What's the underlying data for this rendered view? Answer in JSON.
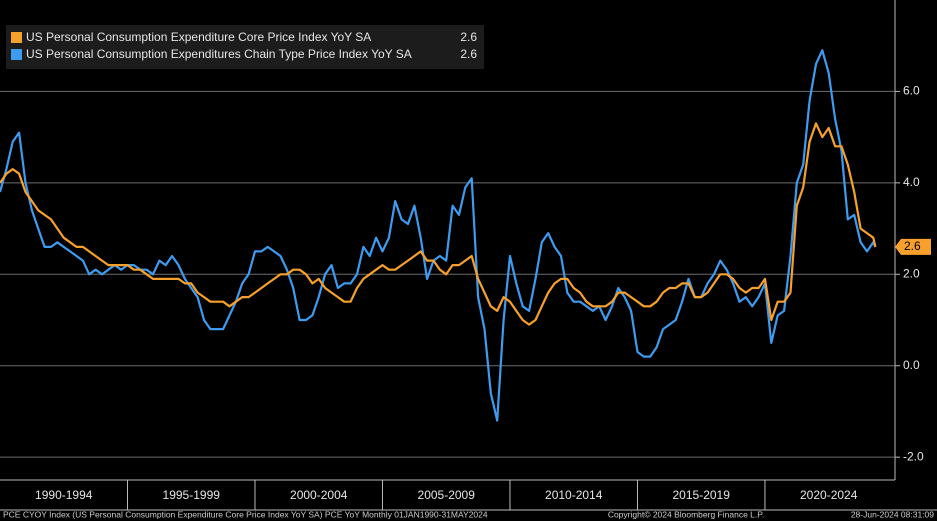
{
  "chart_data": {
    "type": "line",
    "x": [
      1990,
      1990.25,
      1990.5,
      1990.75,
      1991,
      1991.25,
      1991.5,
      1991.75,
      1992,
      1992.25,
      1992.5,
      1992.75,
      1993,
      1993.25,
      1993.5,
      1993.75,
      1994,
      1994.25,
      1994.5,
      1994.75,
      1995,
      1995.25,
      1995.5,
      1995.75,
      1996,
      1996.25,
      1996.5,
      1996.75,
      1997,
      1997.25,
      1997.5,
      1997.75,
      1998,
      1998.25,
      1998.5,
      1998.75,
      1999,
      1999.25,
      1999.5,
      1999.75,
      2000,
      2000.25,
      2000.5,
      2000.75,
      2001,
      2001.25,
      2001.5,
      2001.75,
      2002,
      2002.25,
      2002.5,
      2002.75,
      2003,
      2003.25,
      2003.5,
      2003.75,
      2004,
      2004.25,
      2004.5,
      2004.75,
      2005,
      2005.25,
      2005.5,
      2005.75,
      2006,
      2006.25,
      2006.5,
      2006.75,
      2007,
      2007.25,
      2007.5,
      2007.75,
      2008,
      2008.25,
      2008.5,
      2008.75,
      2009,
      2009.25,
      2009.5,
      2009.75,
      2010,
      2010.25,
      2010.5,
      2010.75,
      2011,
      2011.25,
      2011.5,
      2011.75,
      2012,
      2012.25,
      2012.5,
      2012.75,
      2013,
      2013.25,
      2013.5,
      2013.75,
      2014,
      2014.25,
      2014.5,
      2014.75,
      2015,
      2015.25,
      2015.5,
      2015.75,
      2016,
      2016.25,
      2016.5,
      2016.75,
      2017,
      2017.25,
      2017.5,
      2017.75,
      2018,
      2018.25,
      2018.5,
      2018.75,
      2019,
      2019.25,
      2019.5,
      2019.75,
      2020,
      2020.25,
      2020.5,
      2020.75,
      2021,
      2021.25,
      2021.5,
      2021.75,
      2022,
      2022.25,
      2022.5,
      2022.75,
      2023,
      2023.25,
      2023.5,
      2023.75,
      2024,
      2024.25,
      2024.33
    ],
    "series": [
      {
        "name": "US Personal Consumption Expenditure Core Price Index YoY SA",
        "color": "#f7a02b",
        "values": [
          4.0,
          4.2,
          4.3,
          4.2,
          3.8,
          3.6,
          3.4,
          3.3,
          3.2,
          3.0,
          2.8,
          2.7,
          2.6,
          2.6,
          2.5,
          2.4,
          2.3,
          2.2,
          2.2,
          2.2,
          2.2,
          2.1,
          2.1,
          2.0,
          1.9,
          1.9,
          1.9,
          1.9,
          1.9,
          1.8,
          1.8,
          1.6,
          1.5,
          1.4,
          1.4,
          1.4,
          1.3,
          1.4,
          1.5,
          1.5,
          1.6,
          1.7,
          1.8,
          1.9,
          2.0,
          2.0,
          2.1,
          2.1,
          2.0,
          1.8,
          1.9,
          1.7,
          1.6,
          1.5,
          1.4,
          1.4,
          1.7,
          1.9,
          2.0,
          2.1,
          2.2,
          2.1,
          2.1,
          2.2,
          2.3,
          2.4,
          2.5,
          2.3,
          2.3,
          2.1,
          2.0,
          2.2,
          2.2,
          2.3,
          2.4,
          1.9,
          1.6,
          1.3,
          1.2,
          1.5,
          1.4,
          1.2,
          1.0,
          0.9,
          1.0,
          1.3,
          1.6,
          1.8,
          1.9,
          1.9,
          1.7,
          1.6,
          1.4,
          1.3,
          1.3,
          1.3,
          1.4,
          1.6,
          1.6,
          1.5,
          1.4,
          1.3,
          1.3,
          1.4,
          1.6,
          1.7,
          1.7,
          1.8,
          1.8,
          1.5,
          1.5,
          1.6,
          1.8,
          2.0,
          2.0,
          1.9,
          1.7,
          1.6,
          1.7,
          1.7,
          1.9,
          1.0,
          1.4,
          1.4,
          1.6,
          3.5,
          3.9,
          4.9,
          5.3,
          5.0,
          5.2,
          4.8,
          4.8,
          4.4,
          3.8,
          3.0,
          2.9,
          2.8,
          2.6
        ]
      },
      {
        "name": "US Personal Consumption Expenditures Chain Type Price Index YoY SA",
        "color": "#3d9bf0",
        "values": [
          3.8,
          4.3,
          4.9,
          5.1,
          4.0,
          3.4,
          3.0,
          2.6,
          2.6,
          2.7,
          2.6,
          2.5,
          2.4,
          2.3,
          2.0,
          2.1,
          2.0,
          2.1,
          2.2,
          2.1,
          2.2,
          2.2,
          2.1,
          2.1,
          2.0,
          2.3,
          2.2,
          2.4,
          2.2,
          1.9,
          1.7,
          1.5,
          1.0,
          0.8,
          0.8,
          0.8,
          1.1,
          1.4,
          1.8,
          2.0,
          2.5,
          2.5,
          2.6,
          2.5,
          2.4,
          2.1,
          1.7,
          1.0,
          1.0,
          1.1,
          1.5,
          2.0,
          2.2,
          1.7,
          1.8,
          1.8,
          2.0,
          2.6,
          2.4,
          2.8,
          2.5,
          2.8,
          3.6,
          3.2,
          3.1,
          3.5,
          2.8,
          1.9,
          2.3,
          2.4,
          2.3,
          3.5,
          3.3,
          3.9,
          4.1,
          1.5,
          0.8,
          -0.6,
          -1.2,
          1.0,
          2.4,
          1.8,
          1.3,
          1.2,
          1.9,
          2.7,
          2.9,
          2.6,
          2.4,
          1.6,
          1.4,
          1.4,
          1.3,
          1.2,
          1.3,
          1.0,
          1.3,
          1.7,
          1.5,
          1.2,
          0.3,
          0.2,
          0.2,
          0.4,
          0.8,
          0.9,
          1.0,
          1.4,
          1.9,
          1.5,
          1.5,
          1.8,
          2.0,
          2.3,
          2.1,
          1.8,
          1.4,
          1.5,
          1.3,
          1.5,
          1.8,
          0.5,
          1.1,
          1.2,
          2.4,
          4.0,
          4.4,
          5.8,
          6.6,
          6.9,
          6.4,
          5.4,
          4.7,
          3.2,
          3.3,
          2.7,
          2.5,
          2.7,
          2.6
        ]
      }
    ],
    "xlim": [
      1990,
      2025.1
    ],
    "ylim": [
      -2.5,
      8.0
    ],
    "yticks": [
      {
        "value": 6,
        "label": "6.0"
      },
      {
        "value": 4,
        "label": "4.0"
      },
      {
        "value": 2,
        "label": "2.0"
      },
      {
        "value": 0,
        "label": "0.0"
      },
      {
        "value": -2,
        "label": "-2.0"
      }
    ],
    "grid": true,
    "legend": "upper-left",
    "x_bands": [
      {
        "label": "1990-1994",
        "from": 1990,
        "to": 1995
      },
      {
        "label": "1995-1999",
        "from": 1995,
        "to": 2000
      },
      {
        "label": "2000-2004",
        "from": 2000,
        "to": 2005
      },
      {
        "label": "2005-2009",
        "from": 2005,
        "to": 2010
      },
      {
        "label": "2010-2014",
        "from": 2010,
        "to": 2015
      },
      {
        "label": "2015-2019",
        "from": 2015,
        "to": 2020
      },
      {
        "label": "2020-2024",
        "from": 2020,
        "to": 2025
      }
    ],
    "footer": {
      "left": "PCE CYOY Index (US Personal Consumption Expenditure Core Price Index YoY SA) PCE YoY  Monthly 01JAN1990-31MAY2024",
      "center": "Copyright© 2024 Bloomberg Finance L.P.",
      "right": "28-Jun-2024 08:31:09"
    }
  }
}
